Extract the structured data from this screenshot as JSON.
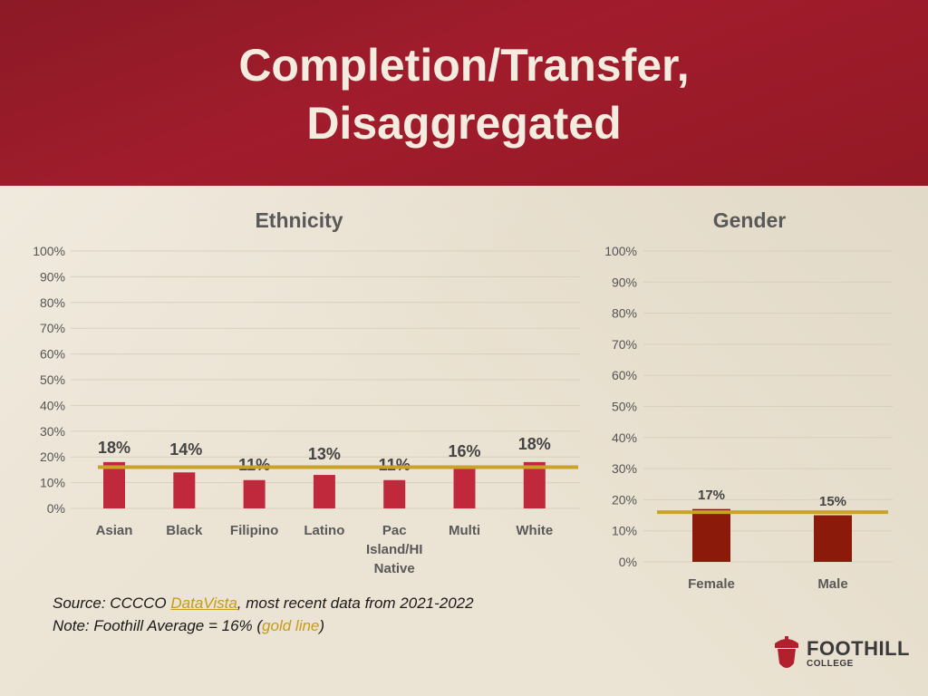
{
  "slide": {
    "title_line1": "Completion/Transfer,",
    "title_line2": "Disaggregated"
  },
  "colors": {
    "header": "#9b1b2a",
    "bar_ethnicity": "#c0283c",
    "bar_gender": "#8b1a0a",
    "average_line": "#c9a227"
  },
  "chart_data": [
    {
      "type": "bar",
      "title": "Ethnicity",
      "categories": [
        [
          "Asian"
        ],
        [
          "Black"
        ],
        [
          "Filipino"
        ],
        [
          "Latino"
        ],
        [
          "Pac",
          "Island/HI",
          "Native"
        ],
        [
          "Multi"
        ],
        [
          "White"
        ]
      ],
      "values": [
        18,
        14,
        11,
        13,
        11,
        16,
        18
      ],
      "data_labels": [
        "18%",
        "14%",
        "11%",
        "13%",
        "11%",
        "16%",
        "18%"
      ],
      "yticks": [
        "0%",
        "10%",
        "20%",
        "30%",
        "40%",
        "50%",
        "60%",
        "70%",
        "80%",
        "90%",
        "100%"
      ],
      "ylim": [
        0,
        100
      ],
      "reference_line": 16
    },
    {
      "type": "bar",
      "title": "Gender",
      "categories": [
        [
          "Female"
        ],
        [
          "Male"
        ]
      ],
      "values": [
        17,
        15
      ],
      "data_labels": [
        "17%",
        "15%"
      ],
      "yticks": [
        "0%",
        "10%",
        "20%",
        "30%",
        "40%",
        "50%",
        "60%",
        "70%",
        "80%",
        "90%",
        "100%"
      ],
      "ylim": [
        0,
        100
      ],
      "reference_line": 16
    }
  ],
  "notes": {
    "source_prefix": "Source: CCCCO ",
    "source_link": "DataVista",
    "source_suffix": ", most recent data from 2021-2022",
    "note_prefix": "Note: Foothill Average = 16% (",
    "note_highlight": "gold line",
    "note_suffix": ")"
  },
  "logo": {
    "name": "FOOTHILL",
    "sub": "COLLEGE"
  }
}
